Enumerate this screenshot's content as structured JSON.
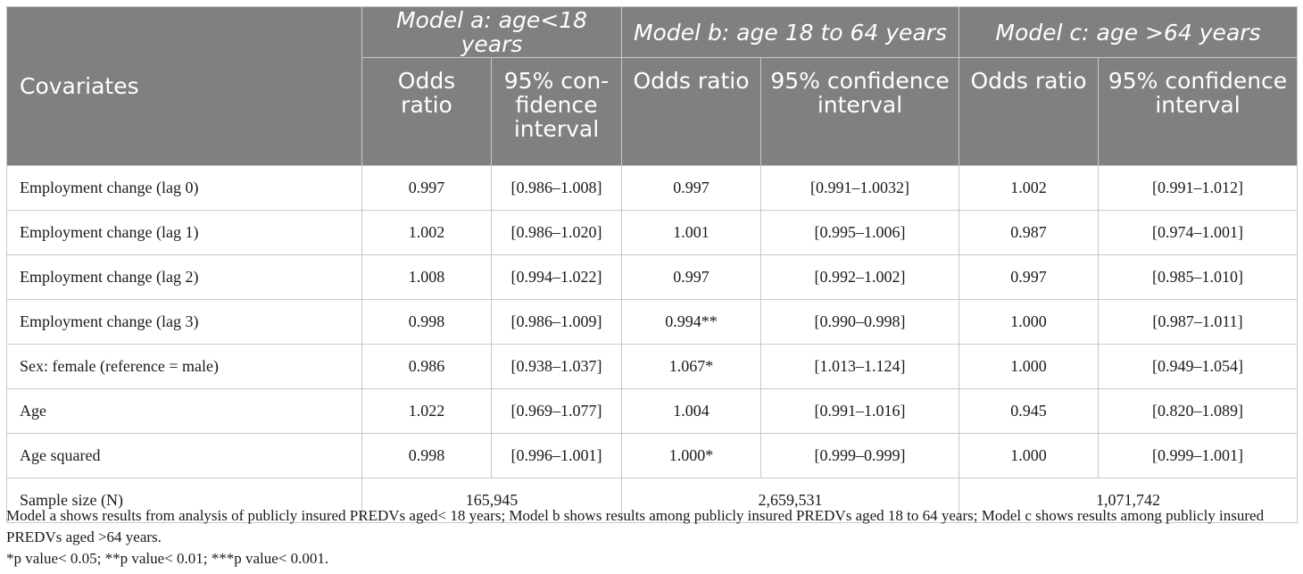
{
  "table": {
    "header": {
      "covariates": "Covariates",
      "models": [
        {
          "title": "Model a: age<18 years",
          "odds": "Odds ratio",
          "ci": "95% con- fidence interval"
        },
        {
          "title": "Model b: age 18 to 64 years",
          "odds": "Odds ratio",
          "ci": "95% confidence interval"
        },
        {
          "title": "Model c: age >64 years",
          "odds": "Odds ratio",
          "ci": "95% confidence interval"
        }
      ]
    },
    "rows": [
      {
        "label": "Employment change (lag 0)",
        "values": [
          "0.997",
          "[0.986–1.008]",
          "0.997",
          "[0.991–1.0032]",
          "1.002",
          "[0.991–1.012]"
        ]
      },
      {
        "label": "Employment change (lag 1)",
        "values": [
          "1.002",
          "[0.986–1.020]",
          "1.001",
          "[0.995–1.006]",
          "0.987",
          "[0.974–1.001]"
        ]
      },
      {
        "label": "Employment change (lag 2)",
        "values": [
          "1.008",
          "[0.994–1.022]",
          "0.997",
          "[0.992–1.002]",
          "0.997",
          "[0.985–1.010]"
        ]
      },
      {
        "label": "Employment change (lag 3)",
        "values": [
          "0.998",
          "[0.986–1.009]",
          "0.994**",
          "[0.990–0.998]",
          "1.000",
          "[0.987–1.011]"
        ]
      },
      {
        "label": "Sex: female (reference = male)",
        "values": [
          "0.986",
          "[0.938–1.037]",
          "1.067*",
          "[1.013–1.124]",
          "1.000",
          "[0.949–1.054]"
        ]
      },
      {
        "label": "Age",
        "values": [
          "1.022",
          "[0.969–1.077]",
          "1.004",
          "[0.991–1.016]",
          "0.945",
          "[0.820–1.089]"
        ]
      },
      {
        "label": "Age squared",
        "values": [
          "0.998",
          "[0.996–1.001]",
          "1.000*",
          "[0.999–0.999]",
          "1.000",
          "[0.999–1.001]"
        ]
      }
    ],
    "sample": {
      "label": "Sample size (N)",
      "values": [
        "165,945",
        "2,659,531",
        "1,071,742"
      ]
    }
  },
  "footnotes": {
    "models": "Model a shows results from analysis of publicly insured PREDVs aged< 18 years; Model b shows results among publicly insured PREDVs aged 18 to 64 years; Model c shows results among publicly insured PREDVs aged >64 years.",
    "significance": "*p value< 0.05; **p value< 0.01; ***p value< 0.001."
  }
}
